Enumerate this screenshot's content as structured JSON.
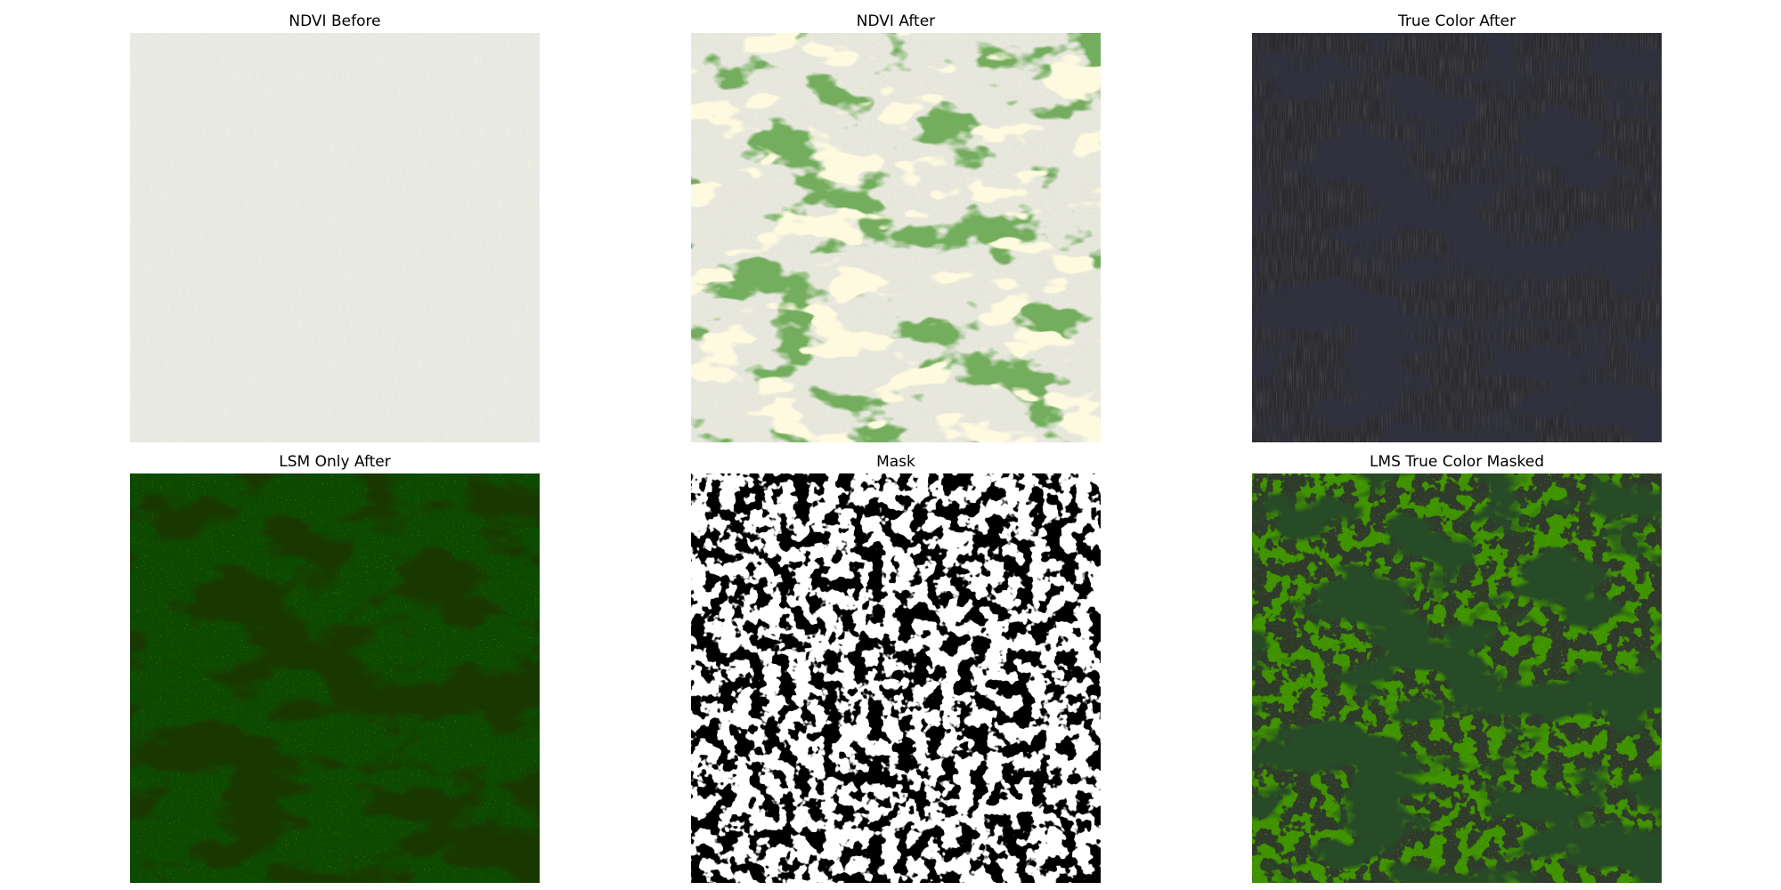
{
  "panels": [
    {
      "title": "NDVI Before",
      "colors": {
        "base": "#e9e9e3",
        "accent": "#f3efc4"
      }
    },
    {
      "title": "NDVI After",
      "colors": {
        "base": "#e8e8df",
        "vein": "#2b6a1b",
        "patch": "#fdf5bd"
      }
    },
    {
      "title": "True Color After",
      "colors": {
        "base": "#2b2b2f",
        "shadow": "#0c0c10"
      }
    },
    {
      "title": "LSM Only After",
      "colors": {
        "base": "#0c4a00",
        "shadow": "#020900",
        "speckle": "#c26a05"
      }
    },
    {
      "title": "Mask",
      "colors": {
        "base": "#ffffff",
        "speckle": "#000000"
      }
    },
    {
      "title": "LMS True Color Masked",
      "colors": {
        "base": "#2e3a2b",
        "green": "#0d4a00",
        "shadow": "#041304",
        "speckle": "#9a9a00"
      }
    }
  ]
}
